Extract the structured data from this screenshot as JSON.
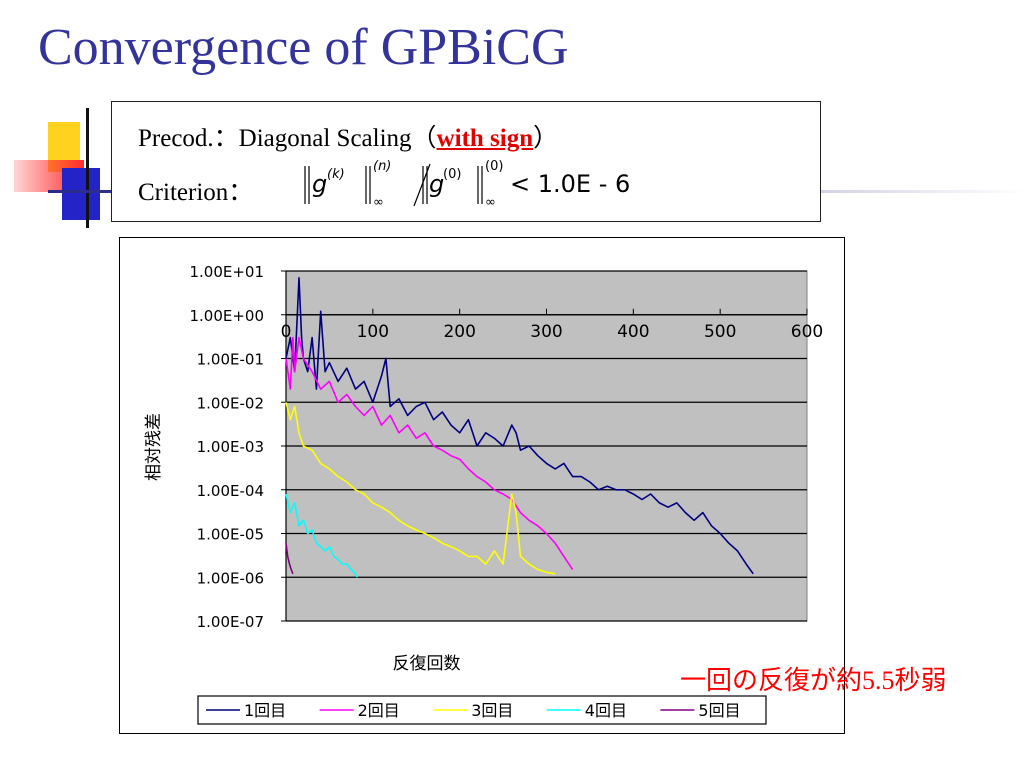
{
  "slide": {
    "title": "Convergence of GPBiCG",
    "precod": {
      "prefix": "Precod.：Diagonal Scaling（",
      "emphasis": "with sign",
      "suffix": "）"
    },
    "criterion": {
      "label": "Criterion：",
      "formula": {
        "g": "g",
        "k": "(k)",
        "n": "(n)",
        "inf": "∞",
        "zero": "(0)",
        "threshold": "< 1.0E - 6"
      }
    },
    "note": {
      "prefix": "一回の反復が約",
      "number": "5.5",
      "suffix": "秒弱"
    }
  },
  "colors": {
    "title": "#33339a",
    "emphasis": "#e00000",
    "plot_background": "#c0c0c0",
    "note": "#ff0000"
  },
  "chart_data": {
    "type": "line",
    "title": "",
    "xlabel": "反復回数",
    "ylabel": "相対残差",
    "xlim": [
      0,
      600
    ],
    "ylim": [
      1e-07,
      10
    ],
    "y_scale": "log",
    "x_ticks": [
      "0",
      "100",
      "200",
      "300",
      "400",
      "500",
      "600"
    ],
    "y_ticks": [
      "1.00E+01",
      "1.00E+00",
      "1.00E-01",
      "1.00E-02",
      "1.00E-03",
      "1.00E-04",
      "1.00E-05",
      "1.00E-06",
      "1.00E-07"
    ],
    "grid": true,
    "legend_position": "bottom",
    "series": [
      {
        "name": "1回目",
        "color": "#000080",
        "x": [
          0,
          5,
          10,
          15,
          18,
          20,
          25,
          30,
          35,
          40,
          45,
          50,
          60,
          70,
          80,
          90,
          100,
          110,
          115,
          120,
          130,
          140,
          150,
          160,
          170,
          180,
          190,
          200,
          210,
          220,
          230,
          240,
          250,
          260,
          265,
          270,
          280,
          290,
          300,
          310,
          320,
          330,
          340,
          350,
          360,
          370,
          380,
          390,
          400,
          410,
          420,
          430,
          440,
          450,
          460,
          470,
          480,
          490,
          500,
          510,
          520,
          530,
          538
        ],
        "y": [
          0.1,
          0.3,
          0.05,
          7,
          0.3,
          0.1,
          0.05,
          0.3,
          0.02,
          1.2,
          0.05,
          0.08,
          0.03,
          0.06,
          0.02,
          0.03,
          0.01,
          0.04,
          0.1,
          0.008,
          0.012,
          0.005,
          0.008,
          0.01,
          0.004,
          0.006,
          0.003,
          0.002,
          0.004,
          0.001,
          0.002,
          0.0015,
          0.001,
          0.003,
          0.002,
          0.0008,
          0.001,
          0.0006,
          0.0004,
          0.0003,
          0.0004,
          0.0002,
          0.0002,
          0.00015,
          0.0001,
          0.00012,
          0.0001,
          0.0001,
          8e-05,
          6e-05,
          8e-05,
          5e-05,
          4e-05,
          5e-05,
          3e-05,
          2e-05,
          3e-05,
          1.5e-05,
          1e-05,
          6e-06,
          4e-06,
          2e-06,
          1.2e-06
        ]
      },
      {
        "name": "2回目",
        "color": "#ff00ff",
        "x": [
          0,
          5,
          8,
          10,
          15,
          20,
          30,
          40,
          50,
          60,
          70,
          80,
          90,
          100,
          110,
          120,
          130,
          140,
          150,
          160,
          170,
          180,
          190,
          200,
          210,
          220,
          230,
          240,
          250,
          260,
          270,
          280,
          290,
          300,
          310,
          320,
          330
        ],
        "y": [
          0.1,
          0.02,
          0.3,
          0.05,
          0.3,
          0.1,
          0.05,
          0.02,
          0.03,
          0.01,
          0.015,
          0.008,
          0.005,
          0.008,
          0.003,
          0.005,
          0.002,
          0.003,
          0.0015,
          0.002,
          0.001,
          0.0008,
          0.0006,
          0.0005,
          0.0003,
          0.0002,
          0.00015,
          0.0001,
          8e-05,
          6e-05,
          3e-05,
          2e-05,
          1.5e-05,
          1e-05,
          6e-06,
          3e-06,
          1.5e-06
        ]
      },
      {
        "name": "3回目",
        "color": "#ffff00",
        "x": [
          0,
          5,
          10,
          15,
          20,
          30,
          40,
          50,
          60,
          70,
          80,
          90,
          100,
          110,
          120,
          130,
          140,
          150,
          160,
          170,
          180,
          190,
          200,
          210,
          220,
          230,
          240,
          250,
          260,
          265,
          270,
          280,
          290,
          300,
          310
        ],
        "y": [
          0.01,
          0.004,
          0.008,
          0.002,
          0.001,
          0.0008,
          0.0004,
          0.0003,
          0.0002,
          0.00015,
          0.0001,
          8e-05,
          5e-05,
          4e-05,
          3e-05,
          2e-05,
          1.5e-05,
          1.2e-05,
          1e-05,
          8e-06,
          6e-06,
          5e-06,
          4e-06,
          3e-06,
          3e-06,
          2e-06,
          4e-06,
          2e-06,
          8e-05,
          3e-05,
          3e-06,
          2e-06,
          1.5e-06,
          1.3e-06,
          1.2e-06
        ]
      },
      {
        "name": "4回目",
        "color": "#00ffff",
        "x": [
          0,
          5,
          10,
          15,
          20,
          25,
          30,
          35,
          40,
          45,
          50,
          55,
          60,
          65,
          70,
          75,
          80,
          82
        ],
        "y": [
          8e-05,
          3e-05,
          5e-05,
          1.5e-05,
          2e-05,
          1e-05,
          1.2e-05,
          6e-06,
          5e-06,
          4e-06,
          5e-06,
          3e-06,
          2.5e-06,
          2e-06,
          2e-06,
          1.5e-06,
          1.2e-06,
          1e-06
        ]
      },
      {
        "name": "5回目",
        "color": "#800080",
        "x": [
          0,
          2,
          4,
          6,
          8
        ],
        "y": [
          6e-06,
          3e-06,
          2e-06,
          1.5e-06,
          1.2e-06
        ]
      }
    ]
  }
}
